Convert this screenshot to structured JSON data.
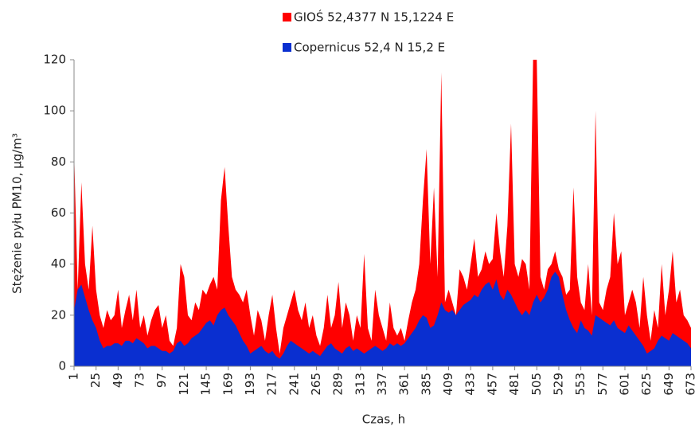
{
  "chart_data": {
    "type": "area",
    "x_label": "Czas, h",
    "y_label": "Stężenie pyłu PM10, µg/m³",
    "x": [
      1,
      5,
      9,
      13,
      17,
      21,
      25,
      29,
      33,
      37,
      41,
      45,
      49,
      53,
      57,
      61,
      65,
      69,
      73,
      77,
      81,
      85,
      89,
      93,
      97,
      101,
      105,
      109,
      113,
      117,
      121,
      125,
      129,
      133,
      137,
      141,
      145,
      149,
      153,
      157,
      161,
      165,
      169,
      173,
      177,
      181,
      185,
      189,
      193,
      197,
      201,
      205,
      209,
      213,
      217,
      221,
      225,
      229,
      233,
      237,
      241,
      245,
      249,
      253,
      257,
      261,
      265,
      269,
      273,
      277,
      281,
      285,
      289,
      293,
      297,
      301,
      305,
      309,
      313,
      317,
      321,
      325,
      329,
      333,
      337,
      341,
      345,
      349,
      353,
      357,
      361,
      365,
      369,
      373,
      377,
      381,
      385,
      389,
      393,
      397,
      401,
      405,
      409,
      413,
      417,
      421,
      425,
      429,
      433,
      437,
      441,
      445,
      449,
      453,
      457,
      461,
      465,
      469,
      473,
      477,
      481,
      485,
      489,
      493,
      497,
      501,
      505,
      509,
      513,
      517,
      521,
      525,
      529,
      533,
      537,
      541,
      545,
      549,
      553,
      557,
      561,
      565,
      569,
      573,
      577,
      581,
      585,
      589,
      593,
      597,
      601,
      605,
      609,
      613,
      617,
      621,
      625,
      629,
      633,
      637,
      641,
      645,
      649,
      653,
      657,
      661,
      665,
      669,
      673
    ],
    "series": [
      {
        "name": "GIOŚ 52,4377 N 15,1224 E",
        "color": "#ff0000",
        "values": [
          85,
          30,
          72,
          40,
          30,
          55,
          30,
          20,
          15,
          22,
          18,
          20,
          30,
          15,
          22,
          28,
          18,
          30,
          15,
          20,
          12,
          18,
          22,
          24,
          15,
          20,
          10,
          8,
          15,
          40,
          35,
          20,
          18,
          25,
          22,
          30,
          28,
          32,
          35,
          30,
          65,
          78,
          55,
          35,
          30,
          28,
          25,
          30,
          20,
          12,
          22,
          18,
          10,
          20,
          28,
          15,
          5,
          15,
          20,
          25,
          30,
          22,
          18,
          25,
          15,
          20,
          12,
          8,
          15,
          28,
          15,
          20,
          33,
          15,
          25,
          20,
          10,
          20,
          15,
          44,
          15,
          10,
          30,
          20,
          15,
          10,
          25,
          15,
          12,
          15,
          10,
          18,
          25,
          30,
          40,
          65,
          85,
          40,
          70,
          35,
          115,
          25,
          30,
          25,
          20,
          38,
          35,
          30,
          40,
          50,
          35,
          38,
          45,
          40,
          42,
          60,
          45,
          35,
          55,
          95,
          40,
          35,
          42,
          40,
          30,
          120,
          120,
          35,
          30,
          38,
          40,
          45,
          38,
          35,
          28,
          30,
          70,
          35,
          25,
          22,
          40,
          20,
          100,
          25,
          22,
          30,
          35,
          60,
          40,
          45,
          20,
          25,
          30,
          25,
          15,
          35,
          20,
          10,
          22,
          15,
          40,
          20,
          30,
          45,
          25,
          30,
          20,
          18,
          15
        ]
      },
      {
        "name": "Copernicus 52,4 N 15,2 E",
        "color": "#0a2fd0",
        "values": [
          22,
          30,
          32,
          27,
          22,
          18,
          15,
          10,
          7,
          8,
          8,
          9,
          9,
          8,
          10,
          10,
          9,
          11,
          10,
          9,
          7,
          8,
          8,
          7,
          6,
          6,
          5,
          6,
          9,
          10,
          8,
          9,
          11,
          12,
          13,
          15,
          17,
          18,
          16,
          20,
          22,
          23,
          20,
          18,
          16,
          13,
          10,
          8,
          5,
          6,
          7,
          8,
          6,
          5,
          6,
          4,
          3,
          5,
          8,
          10,
          9,
          8,
          7,
          6,
          5,
          6,
          5,
          4,
          6,
          8,
          9,
          7,
          6,
          5,
          7,
          8,
          6,
          7,
          6,
          5,
          6,
          7,
          8,
          7,
          6,
          7,
          9,
          8,
          9,
          8,
          9,
          11,
          13,
          15,
          18,
          20,
          19,
          15,
          16,
          20,
          25,
          22,
          21,
          22,
          20,
          22,
          24,
          25,
          26,
          28,
          27,
          30,
          32,
          33,
          30,
          34,
          28,
          26,
          30,
          28,
          25,
          22,
          20,
          22,
          20,
          25,
          28,
          25,
          27,
          30,
          35,
          37,
          35,
          28,
          22,
          18,
          15,
          13,
          18,
          15,
          14,
          12,
          20,
          19,
          18,
          17,
          16,
          18,
          15,
          14,
          13,
          16,
          14,
          12,
          10,
          8,
          5,
          6,
          7,
          10,
          12,
          11,
          10,
          13,
          12,
          11,
          10,
          9,
          7
        ]
      }
    ],
    "xlim": [
      1,
      673
    ],
    "xticks": [
      1,
      25,
      49,
      73,
      97,
      121,
      145,
      169,
      193,
      217,
      241,
      265,
      289,
      313,
      337,
      361,
      385,
      409,
      433,
      457,
      481,
      505,
      529,
      553,
      577,
      601,
      625,
      649,
      673
    ],
    "ylim": [
      0,
      120
    ],
    "yticks": [
      0,
      20,
      40,
      60,
      80,
      100,
      120
    ],
    "legend": "top"
  }
}
